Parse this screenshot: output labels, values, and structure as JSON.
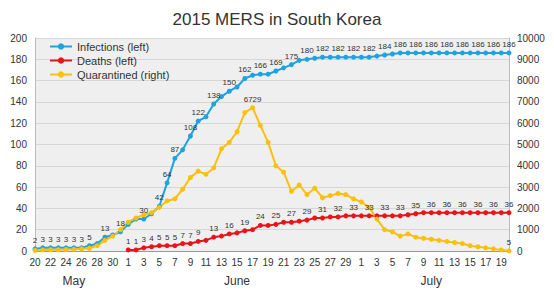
{
  "chart_data": {
    "type": "line",
    "title": "2015 MERS in South Korea",
    "categories": [
      "20",
      null,
      "22",
      null,
      "24",
      null,
      "26",
      null,
      "28",
      null,
      "30",
      null,
      "1",
      null,
      "3",
      null,
      "5",
      null,
      "7",
      null,
      "9",
      null,
      "11",
      null,
      "13",
      null,
      "15",
      null,
      "17",
      null,
      "19",
      null,
      "21",
      null,
      "23",
      null,
      "25",
      null,
      "27",
      null,
      "29",
      null,
      "1",
      null,
      "3",
      null,
      "5",
      null,
      "7",
      null,
      "9",
      null,
      "11",
      null,
      "13",
      null,
      "15",
      null,
      "17",
      null,
      "19",
      null
    ],
    "month_labels": [
      "May",
      "June",
      "July"
    ],
    "series": [
      {
        "name": "Infections (left)",
        "color": "#1fa3e0",
        "marker": "circle",
        "line_style": "solid",
        "values": [
          2,
          3,
          3,
          3,
          3,
          3,
          3,
          5,
          7,
          13,
          15,
          18,
          25,
          30,
          30,
          35,
          42,
          64,
          87,
          95,
          108,
          122,
          126,
          138,
          145,
          150,
          154,
          162,
          165,
          166,
          166,
          169,
          172,
          175,
          179,
          180,
          181,
          182,
          182,
          182,
          182,
          182,
          182,
          182,
          183,
          184,
          185,
          186,
          186,
          186,
          186,
          186,
          186,
          186,
          186,
          186,
          186,
          186,
          186,
          186,
          186,
          186
        ],
        "value_labels": [
          "2",
          "3",
          "3",
          "3",
          "3",
          "3",
          "3",
          "5",
          null,
          "13",
          null,
          "18",
          null,
          null,
          "30",
          null,
          "42",
          "64",
          "87",
          null,
          "108",
          "122",
          null,
          "138",
          null,
          "150",
          null,
          "162",
          null,
          "166",
          null,
          "169",
          null,
          "175",
          null,
          "180",
          null,
          "182",
          null,
          "182",
          null,
          "182",
          null,
          "182",
          null,
          "184",
          null,
          "186",
          null,
          "186",
          null,
          "186",
          null,
          "186",
          null,
          "186",
          null,
          "186",
          null,
          "186",
          null,
          "186"
        ]
      },
      {
        "name": "Deaths (left)",
        "color": "#e8141a",
        "marker": "circle",
        "line_style": "solid",
        "values": [
          null,
          null,
          null,
          null,
          null,
          null,
          null,
          null,
          null,
          null,
          null,
          null,
          1,
          1,
          3,
          4,
          5,
          5,
          5,
          7,
          7,
          9,
          10,
          13,
          14,
          16,
          17,
          19,
          20,
          24,
          24,
          25,
          27,
          27,
          28,
          29,
          31,
          31,
          32,
          32,
          33,
          33,
          33,
          33,
          33,
          33,
          33,
          33,
          34,
          35,
          36,
          36,
          36,
          36,
          36,
          36,
          36,
          36,
          36,
          36,
          36,
          36
        ],
        "value_labels": [
          null,
          null,
          null,
          null,
          null,
          null,
          null,
          null,
          null,
          null,
          null,
          null,
          "1",
          "1",
          "3",
          "4",
          "5",
          "5",
          "5",
          "7",
          "7",
          "9",
          null,
          "13",
          null,
          "16",
          null,
          "19",
          null,
          "24",
          null,
          "25",
          null,
          "27",
          null,
          "29",
          null,
          "31",
          null,
          "32",
          null,
          "33",
          null,
          "33",
          null,
          "33",
          null,
          "33",
          null,
          "35",
          null,
          "36",
          null,
          "36",
          null,
          "36",
          null,
          "36",
          null,
          "36",
          null,
          "36"
        ]
      },
      {
        "name": "Quarantined (right)",
        "color": "#fcbf0c",
        "marker": "circle",
        "line_style": "solid",
        "axis": "y2",
        "values": [
          30,
          50,
          60,
          60,
          70,
          80,
          100,
          130,
          250,
          500,
          700,
          1000,
          1350,
          1550,
          1700,
          1800,
          2050,
          2350,
          2450,
          2900,
          3450,
          3750,
          3600,
          3900,
          4800,
          5100,
          5600,
          6500,
          6729,
          5900,
          5100,
          4000,
          3700,
          2800,
          3100,
          2650,
          2950,
          2500,
          2600,
          2700,
          2650,
          2450,
          2300,
          2050,
          1500,
          1000,
          900,
          700,
          800,
          650,
          600,
          550,
          500,
          450,
          400,
          350,
          250,
          200,
          150,
          100,
          50,
          5
        ],
        "value_labels": [
          null,
          null,
          null,
          null,
          null,
          null,
          null,
          null,
          null,
          null,
          null,
          null,
          null,
          null,
          null,
          null,
          null,
          null,
          null,
          null,
          null,
          null,
          null,
          null,
          null,
          null,
          null,
          null,
          "6729",
          null,
          null,
          null,
          null,
          null,
          null,
          null,
          null,
          null,
          null,
          null,
          null,
          null,
          null,
          null,
          null,
          null,
          null,
          null,
          null,
          null,
          null,
          null,
          null,
          null,
          null,
          null,
          null,
          null,
          null,
          null,
          null,
          "5"
        ]
      }
    ],
    "ylim": [
      0,
      200
    ],
    "yticks": [
      0,
      20,
      40,
      60,
      80,
      100,
      120,
      140,
      160,
      180,
      200
    ],
    "y2lim": [
      0,
      10000
    ],
    "y2ticks": [
      0,
      1000,
      2000,
      3000,
      4000,
      5000,
      6000,
      7000,
      8000,
      9000,
      10000
    ],
    "grid": true,
    "legend": "upper left",
    "data_labels": true
  }
}
